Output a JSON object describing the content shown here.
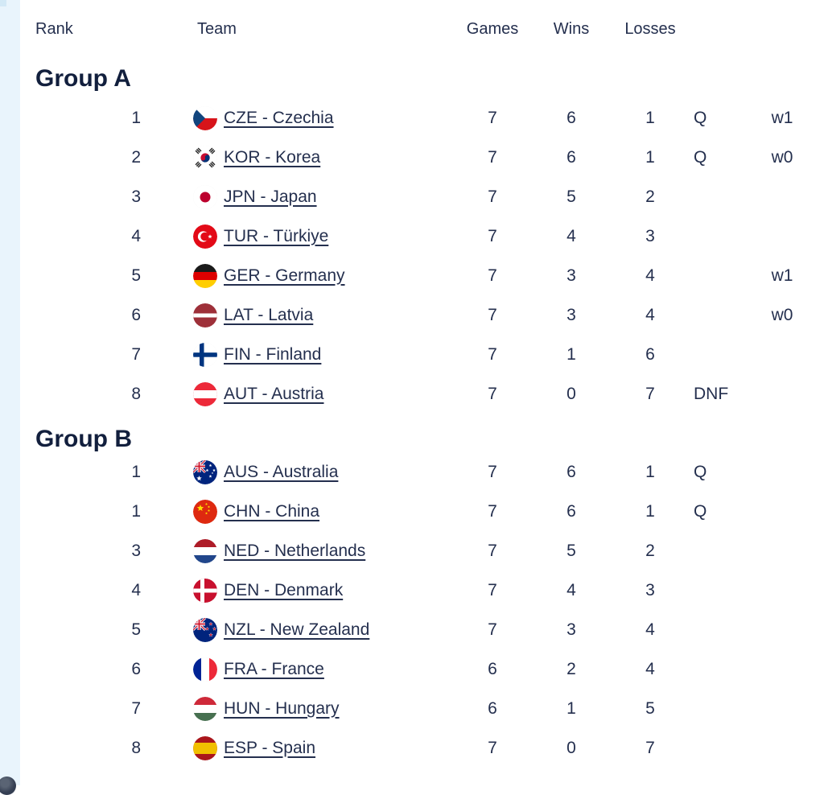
{
  "header": {
    "rank": "Rank",
    "team": "Team",
    "games": "Games",
    "wins": "Wins",
    "losses": "Losses"
  },
  "colors": {
    "text_navy": "#242f4e",
    "heading_navy": "#121f3d",
    "left_strip_blue": "#e9f4fc"
  },
  "groups": [
    {
      "title": "Group A",
      "rows": [
        {
          "rank": "1",
          "code": "CZE",
          "team": "CZE - Czechia",
          "games": "7",
          "wins": "6",
          "losses": "1",
          "qualification": "Q",
          "note": "w1"
        },
        {
          "rank": "2",
          "code": "KOR",
          "team": "KOR - Korea",
          "games": "7",
          "wins": "6",
          "losses": "1",
          "qualification": "Q",
          "note": "w0"
        },
        {
          "rank": "3",
          "code": "JPN",
          "team": "JPN - Japan",
          "games": "7",
          "wins": "5",
          "losses": "2",
          "qualification": "",
          "note": ""
        },
        {
          "rank": "4",
          "code": "TUR",
          "team": "TUR - Türkiye",
          "games": "7",
          "wins": "4",
          "losses": "3",
          "qualification": "",
          "note": ""
        },
        {
          "rank": "5",
          "code": "GER",
          "team": "GER - Germany",
          "games": "7",
          "wins": "3",
          "losses": "4",
          "qualification": "",
          "note": "w1"
        },
        {
          "rank": "6",
          "code": "LAT",
          "team": "LAT - Latvia",
          "games": "7",
          "wins": "3",
          "losses": "4",
          "qualification": "",
          "note": "w0"
        },
        {
          "rank": "7",
          "code": "FIN",
          "team": "FIN - Finland",
          "games": "7",
          "wins": "1",
          "losses": "6",
          "qualification": "",
          "note": ""
        },
        {
          "rank": "8",
          "code": "AUT",
          "team": "AUT - Austria",
          "games": "7",
          "wins": "0",
          "losses": "7",
          "qualification": "DNF",
          "note": ""
        }
      ]
    },
    {
      "title": "Group B",
      "rows": [
        {
          "rank": "1",
          "code": "AUS",
          "team": "AUS - Australia",
          "games": "7",
          "wins": "6",
          "losses": "1",
          "qualification": "Q",
          "note": ""
        },
        {
          "rank": "1",
          "code": "CHN",
          "team": "CHN - China",
          "games": "7",
          "wins": "6",
          "losses": "1",
          "qualification": "Q",
          "note": ""
        },
        {
          "rank": "3",
          "code": "NED",
          "team": "NED - Netherlands",
          "games": "7",
          "wins": "5",
          "losses": "2",
          "qualification": "",
          "note": ""
        },
        {
          "rank": "4",
          "code": "DEN",
          "team": "DEN - Denmark",
          "games": "7",
          "wins": "4",
          "losses": "3",
          "qualification": "",
          "note": ""
        },
        {
          "rank": "5",
          "code": "NZL",
          "team": "NZL - New Zealand",
          "games": "7",
          "wins": "3",
          "losses": "4",
          "qualification": "",
          "note": ""
        },
        {
          "rank": "6",
          "code": "FRA",
          "team": "FRA - France",
          "games": "6",
          "wins": "2",
          "losses": "4",
          "qualification": "",
          "note": ""
        },
        {
          "rank": "7",
          "code": "HUN",
          "team": "HUN - Hungary",
          "games": "6",
          "wins": "1",
          "losses": "5",
          "qualification": "",
          "note": ""
        },
        {
          "rank": "8",
          "code": "ESP",
          "team": "ESP - Spain",
          "games": "7",
          "wins": "0",
          "losses": "7",
          "qualification": "",
          "note": ""
        }
      ]
    }
  ]
}
